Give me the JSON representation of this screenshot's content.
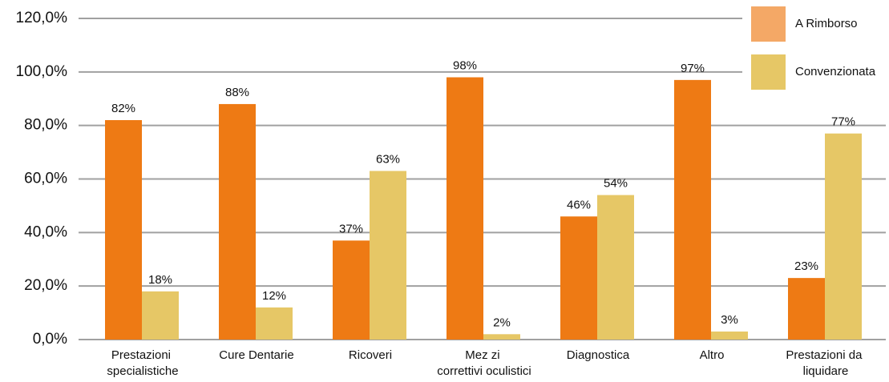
{
  "chart_data": {
    "type": "bar",
    "categories": [
      "Prestazioni specialistiche",
      "Cure Dentarie",
      "Ricoveri",
      "Mez zi correttivi oculistici",
      "Diagnostica",
      "Altro",
      "Prestazioni da liquidare"
    ],
    "series": [
      {
        "name": "A Rimborso",
        "color": "#ee7a14",
        "values": [
          82,
          88,
          37,
          98,
          46,
          97,
          23
        ],
        "value_labels": [
          "82%",
          "88%",
          "37%",
          "98%",
          "46%",
          "97%",
          "23%"
        ]
      },
      {
        "name": "Convenzionata",
        "color": "#e6c766",
        "values": [
          18,
          12,
          63,
          2,
          54,
          3,
          77
        ],
        "value_labels": [
          "18%",
          "12%",
          "63%",
          "2%",
          "54%",
          "3%",
          "77%"
        ]
      }
    ],
    "ylim": [
      0,
      120
    ],
    "yticks": [
      {
        "value": 0,
        "label": "0,0%"
      },
      {
        "value": 20,
        "label": "20,0%"
      },
      {
        "value": 40,
        "label": "40,0%"
      },
      {
        "value": 60,
        "label": "60,0%"
      },
      {
        "value": 80,
        "label": "80,0%"
      },
      {
        "value": 100,
        "label": "100,0%"
      },
      {
        "value": 120,
        "label": "120,0%"
      }
    ],
    "grid": true,
    "legend": "top-right"
  }
}
